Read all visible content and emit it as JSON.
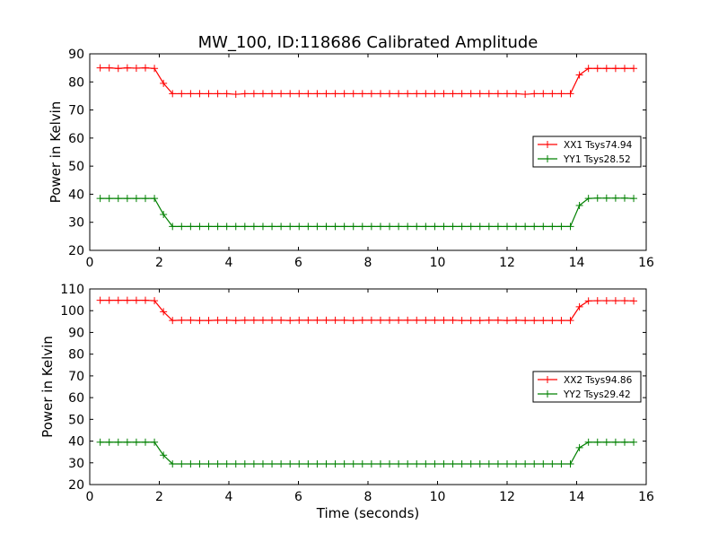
{
  "figure": {
    "title": "MW_100, ID:118686 Calibrated Amplitude"
  },
  "chart_data": [
    {
      "type": "line",
      "title": "MW_100, ID:118686 Calibrated Amplitude",
      "xlabel": "",
      "ylabel": "Power in Kelvin",
      "xlim": [
        0,
        16
      ],
      "ylim": [
        20,
        90
      ],
      "xticks": [
        0,
        2,
        4,
        6,
        8,
        10,
        12,
        14,
        16
      ],
      "yticks": [
        20,
        30,
        40,
        50,
        60,
        70,
        80,
        90
      ],
      "grid": false,
      "legend_position": "right",
      "x": [
        0.3,
        0.56,
        0.82,
        1.08,
        1.34,
        1.6,
        1.86,
        2.12,
        2.38,
        2.64,
        2.9,
        3.16,
        3.42,
        3.68,
        3.94,
        4.2,
        4.46,
        4.72,
        4.98,
        5.24,
        5.5,
        5.76,
        6.02,
        6.28,
        6.54,
        6.8,
        7.06,
        7.32,
        7.58,
        7.84,
        8.1,
        8.36,
        8.62,
        8.88,
        9.14,
        9.4,
        9.66,
        9.92,
        10.18,
        10.44,
        10.7,
        10.96,
        11.22,
        11.48,
        11.74,
        12.0,
        12.26,
        12.52,
        12.78,
        13.04,
        13.3,
        13.56,
        13.82,
        14.08,
        14.34,
        14.6,
        14.86,
        15.12,
        15.38,
        15.64
      ],
      "series": [
        {
          "name": "XX1 Tsys74.94",
          "color": "#ff0000",
          "values": [
            85.0,
            85.0,
            84.8,
            85.0,
            84.9,
            85.0,
            84.8,
            79.5,
            75.8,
            75.8,
            75.8,
            75.8,
            75.8,
            75.8,
            75.8,
            75.6,
            75.8,
            75.8,
            75.8,
            75.8,
            75.8,
            75.8,
            75.8,
            75.8,
            75.8,
            75.8,
            75.8,
            75.8,
            75.8,
            75.8,
            75.8,
            75.8,
            75.8,
            75.8,
            75.8,
            75.8,
            75.8,
            75.8,
            75.8,
            75.8,
            75.8,
            75.8,
            75.8,
            75.8,
            75.8,
            75.8,
            75.8,
            75.6,
            75.8,
            75.8,
            75.8,
            75.8,
            75.8,
            82.5,
            84.8,
            84.8,
            84.8,
            84.8,
            84.8,
            84.8
          ]
        },
        {
          "name": "YY1 Tsys28.52",
          "color": "#008000",
          "values": [
            38.5,
            38.5,
            38.5,
            38.5,
            38.5,
            38.5,
            38.5,
            32.8,
            28.5,
            28.5,
            28.5,
            28.5,
            28.5,
            28.5,
            28.5,
            28.5,
            28.5,
            28.5,
            28.5,
            28.5,
            28.5,
            28.5,
            28.5,
            28.5,
            28.5,
            28.5,
            28.5,
            28.5,
            28.5,
            28.5,
            28.5,
            28.5,
            28.5,
            28.5,
            28.5,
            28.5,
            28.5,
            28.5,
            28.5,
            28.5,
            28.5,
            28.5,
            28.5,
            28.5,
            28.5,
            28.5,
            28.5,
            28.5,
            28.5,
            28.5,
            28.5,
            28.5,
            28.5,
            36.0,
            38.5,
            38.6,
            38.6,
            38.6,
            38.6,
            38.5
          ]
        }
      ]
    },
    {
      "type": "line",
      "title": "",
      "xlabel": "Time (seconds)",
      "ylabel": "Power in Kelvin",
      "xlim": [
        0,
        16
      ],
      "ylim": [
        20,
        110
      ],
      "xticks": [
        0,
        2,
        4,
        6,
        8,
        10,
        12,
        14,
        16
      ],
      "yticks": [
        20,
        30,
        40,
        50,
        60,
        70,
        80,
        90,
        100,
        110
      ],
      "grid": false,
      "legend_position": "right",
      "x": [
        0.3,
        0.56,
        0.82,
        1.08,
        1.34,
        1.6,
        1.86,
        2.12,
        2.38,
        2.64,
        2.9,
        3.16,
        3.42,
        3.68,
        3.94,
        4.2,
        4.46,
        4.72,
        4.98,
        5.24,
        5.5,
        5.76,
        6.02,
        6.28,
        6.54,
        6.8,
        7.06,
        7.32,
        7.58,
        7.84,
        8.1,
        8.36,
        8.62,
        8.88,
        9.14,
        9.4,
        9.66,
        9.92,
        10.18,
        10.44,
        10.7,
        10.96,
        11.22,
        11.48,
        11.74,
        12.0,
        12.26,
        12.52,
        12.78,
        13.04,
        13.3,
        13.56,
        13.82,
        14.08,
        14.34,
        14.6,
        14.86,
        15.12,
        15.38,
        15.64
      ],
      "series": [
        {
          "name": "XX2 Tsys94.86",
          "color": "#ff0000",
          "values": [
            104.8,
            104.8,
            104.8,
            104.8,
            104.8,
            104.8,
            104.6,
            99.5,
            95.5,
            95.6,
            95.6,
            95.5,
            95.5,
            95.6,
            95.6,
            95.5,
            95.6,
            95.6,
            95.6,
            95.6,
            95.6,
            95.5,
            95.6,
            95.6,
            95.6,
            95.6,
            95.6,
            95.6,
            95.5,
            95.6,
            95.6,
            95.6,
            95.6,
            95.6,
            95.6,
            95.6,
            95.6,
            95.6,
            95.6,
            95.6,
            95.5,
            95.5,
            95.5,
            95.6,
            95.6,
            95.5,
            95.6,
            95.5,
            95.5,
            95.5,
            95.5,
            95.5,
            95.5,
            101.8,
            104.5,
            104.6,
            104.6,
            104.6,
            104.6,
            104.5
          ]
        },
        {
          "name": "YY2 Tsys29.42",
          "color": "#008000",
          "values": [
            39.5,
            39.5,
            39.5,
            39.5,
            39.5,
            39.5,
            39.5,
            33.5,
            29.5,
            29.5,
            29.5,
            29.5,
            29.5,
            29.5,
            29.5,
            29.5,
            29.5,
            29.5,
            29.5,
            29.5,
            29.5,
            29.5,
            29.5,
            29.5,
            29.5,
            29.5,
            29.5,
            29.5,
            29.5,
            29.5,
            29.5,
            29.5,
            29.5,
            29.5,
            29.5,
            29.5,
            29.5,
            29.5,
            29.5,
            29.5,
            29.5,
            29.5,
            29.5,
            29.5,
            29.5,
            29.5,
            29.5,
            29.5,
            29.5,
            29.5,
            29.5,
            29.5,
            29.5,
            37.0,
            39.5,
            39.5,
            39.5,
            39.5,
            39.5,
            39.5
          ]
        }
      ]
    }
  ]
}
